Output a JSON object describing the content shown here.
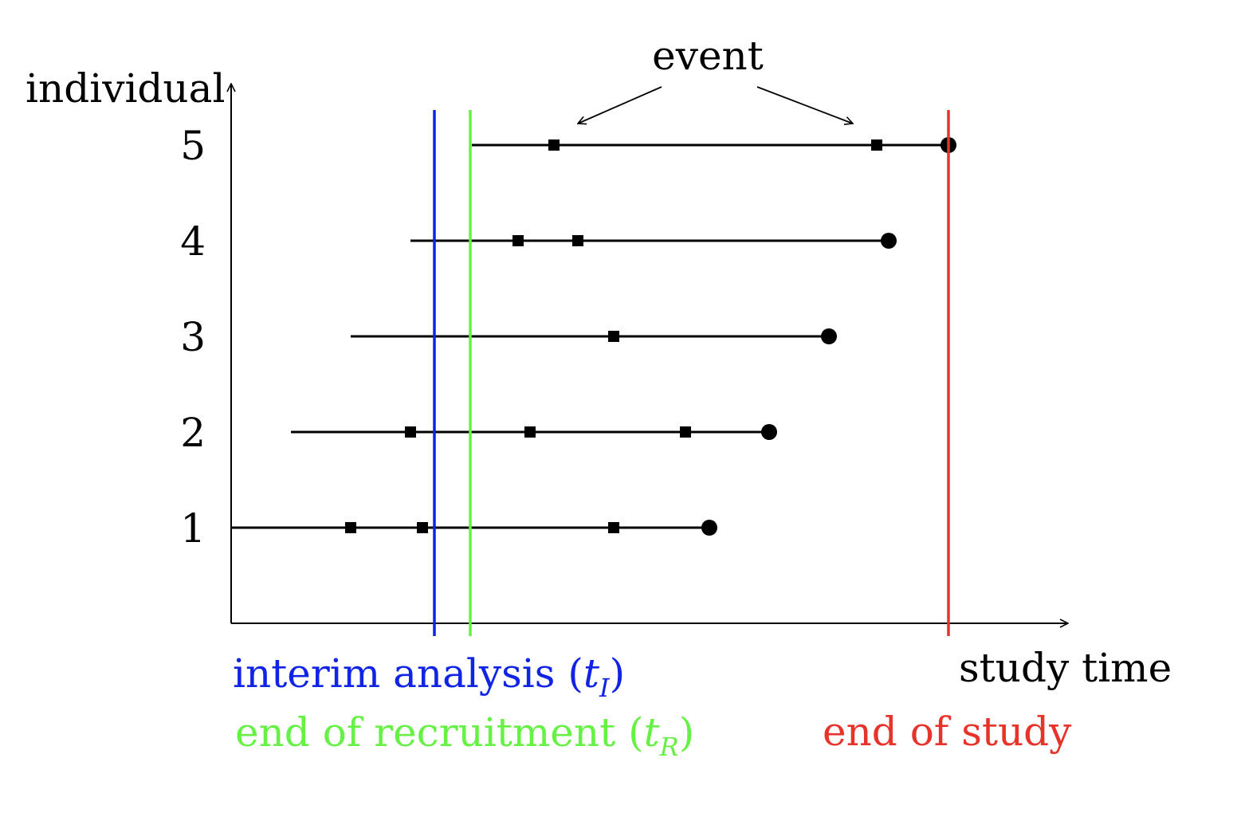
{
  "axes": {
    "y_label": "individual",
    "x_label": "study time"
  },
  "individuals": [
    {
      "label": "1",
      "start": 0,
      "end": 600,
      "events": [
        150,
        240,
        480
      ]
    },
    {
      "label": "2",
      "start": 75,
      "end": 675,
      "events": [
        225,
        375,
        570
      ]
    },
    {
      "label": "3",
      "start": 150,
      "end": 750,
      "events": [
        480
      ]
    },
    {
      "label": "4",
      "start": 225,
      "end": 825,
      "events": [
        360,
        435
      ]
    },
    {
      "label": "5",
      "start": 302,
      "end": 900,
      "events": [
        405,
        810
      ]
    }
  ],
  "reference_lines": [
    {
      "id": "interim",
      "x": 255,
      "color": "#1024e6"
    },
    {
      "id": "recruitment",
      "x": 300,
      "color": "#66f245"
    },
    {
      "id": "study-end",
      "x": 900,
      "color": "#e8332a"
    }
  ],
  "legend": {
    "interim": {
      "text": "interim analysis (",
      "var": "t",
      "sub": "I",
      "close": ")",
      "color": "#1024e6"
    },
    "recruitment": {
      "text": "end of recruitment (",
      "var": "t",
      "sub": "R",
      "close": ")",
      "color": "#66f245"
    },
    "study_end": {
      "text": "end of study",
      "color": "#e8332a"
    }
  },
  "annotation": {
    "label": "event"
  }
}
